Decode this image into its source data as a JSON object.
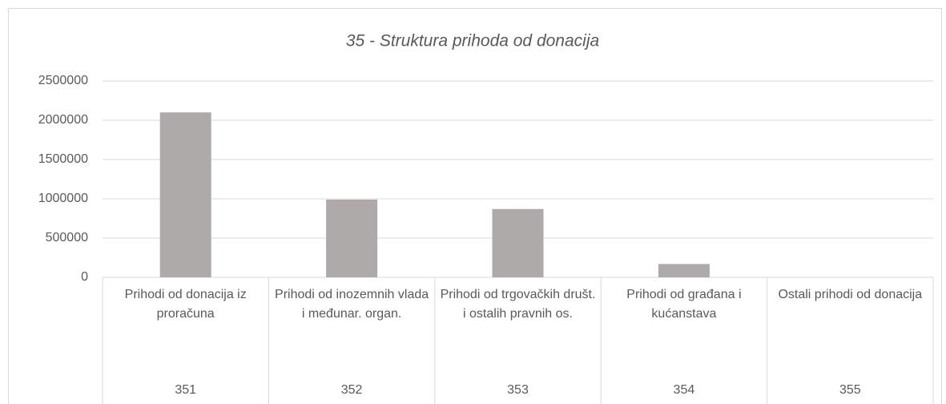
{
  "chart_data": {
    "type": "bar",
    "title": "35 - Struktura prihoda od donacija",
    "categories": [
      "Prihodi od donacija iz proračuna",
      "Prihodi od inozemnih vlada i međunar. organ.",
      "Prihodi od trgovačkih društ. i ostalih pravnih os.",
      "Prihodi od građana i kućanstava",
      "Ostali prihodi od donacija"
    ],
    "codes": [
      "351",
      "352",
      "353",
      "354",
      "355"
    ],
    "values": [
      2100000,
      990000,
      870000,
      170000,
      0
    ],
    "color": "#aeaaaa",
    "ylim": [
      0,
      2500000
    ],
    "yticks": [
      0,
      500000,
      1000000,
      1500000,
      2000000,
      2500000
    ],
    "grid": true
  }
}
